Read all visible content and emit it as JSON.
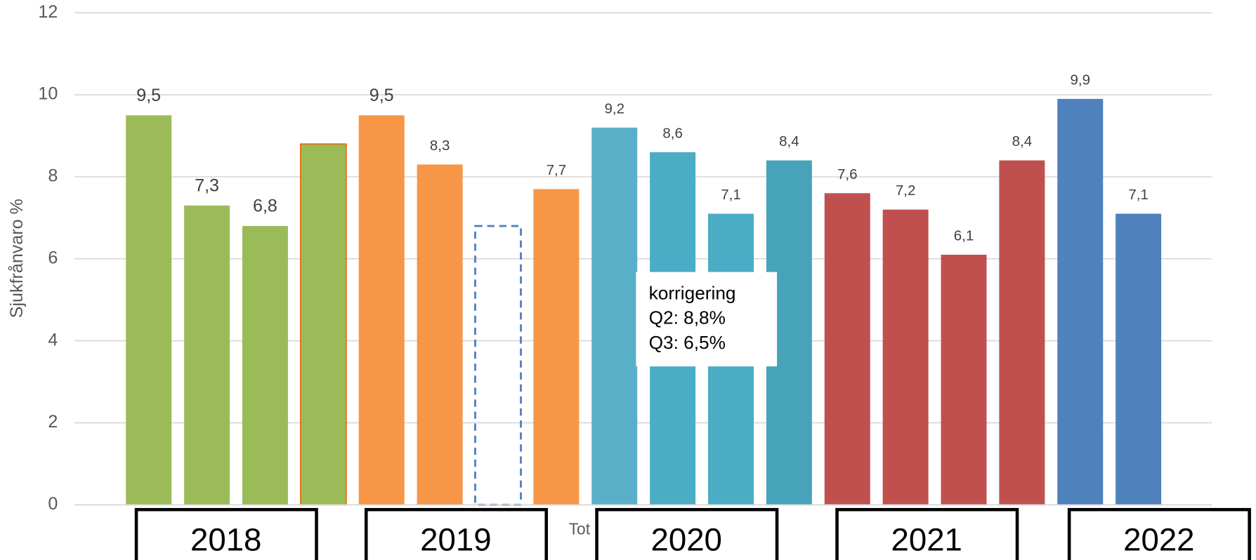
{
  "chart_data": {
    "type": "bar",
    "y_label": "Sjukfrånvaro %",
    "x_label": "Tot",
    "values": [
      9.5,
      7.3,
      6.8,
      8.8,
      9.5,
      8.3,
      6.8,
      7.7,
      9.2,
      8.6,
      7.1,
      8.4,
      7.6,
      7.2,
      6.1,
      8.4,
      9.9,
      7.1
    ],
    "value_labels": [
      "9,5",
      "7,3",
      "6,8",
      null,
      "9,5",
      "8,3",
      null,
      "7,7",
      "9,2",
      "8,6",
      "7,1",
      "8,4",
      "7,6",
      "7,2",
      "6,1",
      "8,4",
      "9,9",
      "7,1"
    ],
    "colors": [
      "#9bbb59",
      "#9bbb59",
      "#9bbb59",
      "#9bbb59",
      "#f79646",
      "#f79646",
      "#4f81bd",
      "#f79646",
      "#5aafc8",
      "#4bacc6",
      "#4bacc6",
      "#46a3b9",
      "#c0504d",
      "#c0504d",
      "#c0504d",
      "#c0504d",
      "#4f81bd",
      "#4f81bd"
    ],
    "dashed": [
      6
    ],
    "groups": [
      {
        "label": "2018",
        "size": 4
      },
      {
        "label": "2019",
        "size": 4
      },
      {
        "label": "2020",
        "size": 4
      },
      {
        "label": "2021",
        "size": 4
      },
      {
        "label": "2022",
        "size": 2
      }
    ],
    "annotation": [
      "korrigering",
      "Q2: 8,8%",
      "Q3: 6,5%"
    ],
    "ylim": [
      0,
      12
    ],
    "yticks": [
      0,
      2,
      4,
      6,
      8,
      10,
      12
    ],
    "grid": true
  }
}
